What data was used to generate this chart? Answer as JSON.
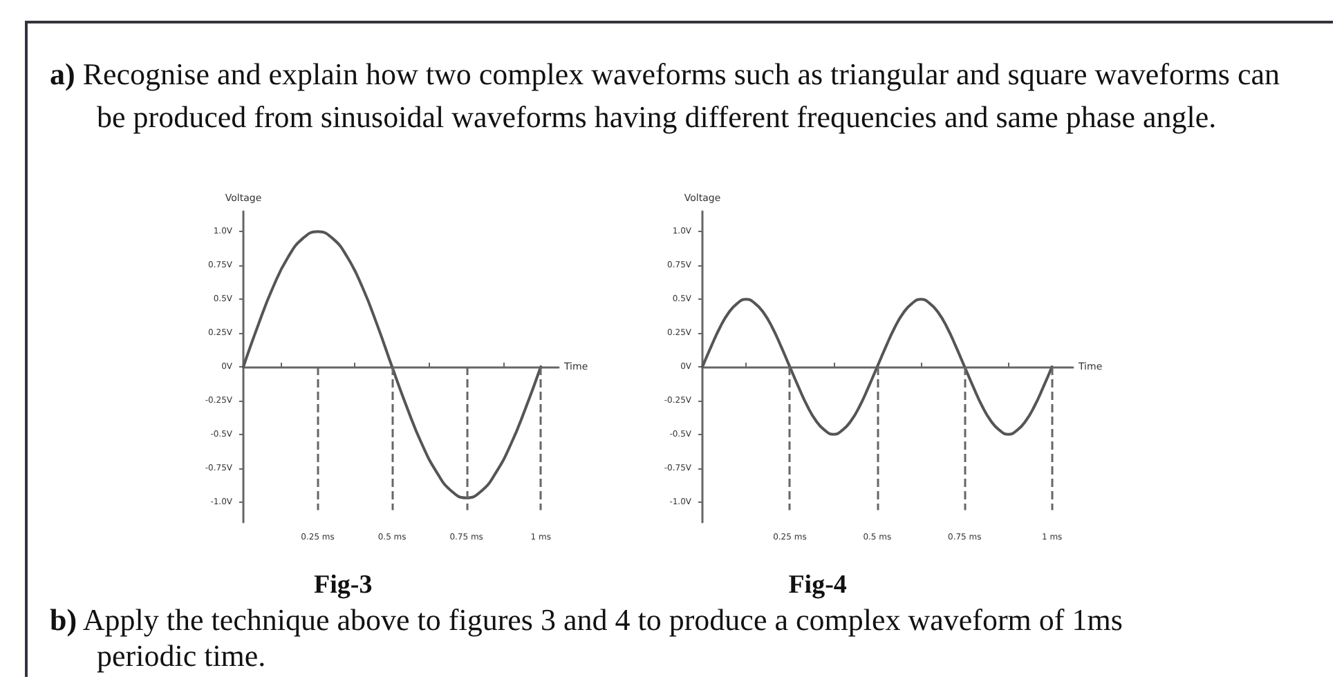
{
  "chart_data": [
    {
      "type": "line",
      "title": "Fig-3",
      "annotations": [
        "a) Recognise and explain how two complex waveforms such as triangular and square waveforms can be produced from sinusoidal waveforms having different frequencies and same phase angle."
      ],
      "ylabel": "Voltage",
      "xlabel": "Time",
      "x": [
        0,
        0.05,
        0.1,
        0.15,
        0.2,
        0.25,
        0.3,
        0.35,
        0.4,
        0.45,
        0.5,
        0.55,
        0.6,
        0.65,
        0.7,
        0.75,
        0.8,
        0.85,
        0.9,
        0.95,
        1
      ],
      "series": [
        {
          "color": "#555555",
          "values": [
            0,
            0.31,
            0.59,
            0.81,
            0.95,
            1,
            0.95,
            0.81,
            0.59,
            0.31,
            0,
            -0.3,
            -0.57,
            -0.78,
            -0.92,
            -0.97,
            -0.92,
            -0.78,
            -0.57,
            -0.3,
            0
          ]
        }
      ],
      "xlim": [
        0,
        1.06
      ],
      "xticks": [
        {
          "value": 0.25,
          "label": "0.25 ms"
        },
        {
          "value": 0.5,
          "label": "0.5 ms"
        },
        {
          "value": 0.75,
          "label": "0.75 ms"
        },
        {
          "value": 1,
          "label": "1 ms"
        }
      ],
      "ylim": [
        -1.15,
        1.15
      ],
      "yticks": [
        {
          "value": -1,
          "label": "-1.0V"
        },
        {
          "value": -0.75,
          "label": "-0.75V"
        },
        {
          "value": -0.5,
          "label": "-0.5V"
        },
        {
          "value": -0.25,
          "label": "-0.25V"
        },
        {
          "value": 0,
          "label": "0V"
        },
        {
          "value": 0.25,
          "label": "0.25V"
        },
        {
          "value": 0.5,
          "label": "0.5V"
        },
        {
          "value": 0.75,
          "label": "0.75V"
        },
        {
          "value": 1,
          "label": "1.0V"
        }
      ],
      "ref_lines": [
        {
          "axis": "x",
          "value": 0.25,
          "line_style": "dashed",
          "color": "#666666"
        },
        {
          "axis": "x",
          "value": 0.5,
          "line_style": "dashed",
          "color": "#666666"
        },
        {
          "axis": "x",
          "value": 0.75,
          "line_style": "dashed",
          "color": "#666666"
        },
        {
          "axis": "x",
          "value": 1,
          "line_style": "dashed",
          "color": "#666666"
        }
      ],
      "marker": "none",
      "line_style": "solid"
    },
    {
      "type": "line",
      "title": "Fig-4",
      "annotations": [
        "b) Apply the technique above to figures 3 and 4 to produce a complex waveform of 1ms periodic time."
      ],
      "ylabel": "Voltage",
      "xlabel": "Time",
      "x": [
        0,
        0.025,
        0.05,
        0.075,
        0.1,
        0.125,
        0.15,
        0.175,
        0.2,
        0.225,
        0.25,
        0.275,
        0.3,
        0.325,
        0.35,
        0.375,
        0.4,
        0.425,
        0.45,
        0.475,
        0.5,
        0.525,
        0.55,
        0.575,
        0.6,
        0.625,
        0.65,
        0.675,
        0.7,
        0.725,
        0.75,
        0.775,
        0.8,
        0.825,
        0.85,
        0.875,
        0.9,
        0.925,
        0.95,
        0.975,
        1
      ],
      "series": [
        {
          "color": "#555555",
          "values": [
            0,
            0.15,
            0.29,
            0.4,
            0.47,
            0.5,
            0.47,
            0.4,
            0.29,
            0.15,
            0,
            -0.15,
            -0.29,
            -0.4,
            -0.47,
            -0.5,
            -0.47,
            -0.4,
            -0.29,
            -0.15,
            0,
            0.15,
            0.29,
            0.4,
            0.47,
            0.5,
            0.47,
            0.4,
            0.29,
            0.15,
            0,
            -0.15,
            -0.29,
            -0.4,
            -0.47,
            -0.5,
            -0.47,
            -0.4,
            -0.29,
            -0.15,
            0
          ]
        }
      ],
      "xlim": [
        0,
        1.06
      ],
      "xticks": [
        {
          "value": 0.25,
          "label": "0.25 ms"
        },
        {
          "value": 0.5,
          "label": "0.5 ms"
        },
        {
          "value": 0.75,
          "label": "0.75 ms"
        },
        {
          "value": 1,
          "label": "1 ms"
        }
      ],
      "ylim": [
        -1.15,
        1.15
      ],
      "yticks": [
        {
          "value": -1,
          "label": "-1.0V"
        },
        {
          "value": -0.75,
          "label": "-0.75V"
        },
        {
          "value": -0.5,
          "label": "-0.5V"
        },
        {
          "value": -0.25,
          "label": "-0.25V"
        },
        {
          "value": 0,
          "label": "0V"
        },
        {
          "value": 0.25,
          "label": "0.25V"
        },
        {
          "value": 0.5,
          "label": "0.5V"
        },
        {
          "value": 0.75,
          "label": "0.75V"
        },
        {
          "value": 1,
          "label": "1.0V"
        }
      ],
      "ref_lines": [
        {
          "axis": "x",
          "value": 0.25,
          "line_style": "dashed",
          "color": "#666666"
        },
        {
          "axis": "x",
          "value": 0.5,
          "line_style": "dashed",
          "color": "#666666"
        },
        {
          "axis": "x",
          "value": 0.75,
          "line_style": "dashed",
          "color": "#666666"
        },
        {
          "axis": "x",
          "value": 1,
          "line_style": "dashed",
          "color": "#666666"
        }
      ],
      "marker": "none",
      "line_style": "solid"
    }
  ]
}
